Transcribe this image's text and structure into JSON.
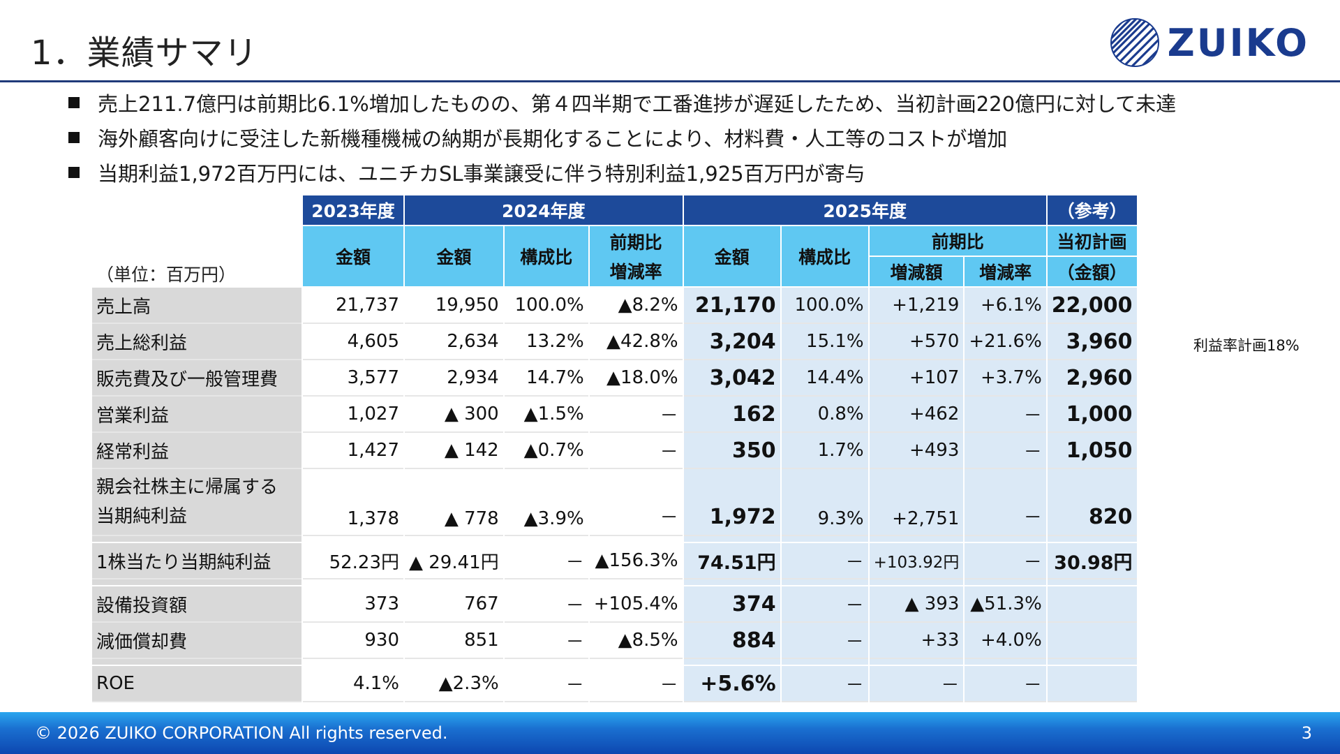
{
  "header": {
    "title": "1．業績サマリ",
    "logo_text": "ZUIKO",
    "logo_mark": "zuiko-sphere-logo"
  },
  "bullets": [
    "売上211.7億円は前期比6.1%増加したものの、第４四半期で工番進捗が遅延したため、当初計画220億円に対して未達",
    "海外顧客向けに受注した新機種機械の納期が長期化することにより、材料費・人工等のコストが増加",
    "当期利益1,972百万円には、ユニチカSL事業譲受に伴う特別利益1,925百万円が寄与"
  ],
  "table": {
    "unit": "（単位：百万円）",
    "years": {
      "y2023": "2023年度",
      "y2024": "2024年度",
      "y2025": "2025年度",
      "ref": "（参考）"
    },
    "cols": {
      "amount": "金額",
      "ratio": "構成比",
      "yoy_rate_l1": "前期比",
      "yoy_rate_l2": "増減率",
      "yoy": "前期比",
      "change_amount": "増減額",
      "change_rate": "増減率",
      "plan_l1": "当初計画",
      "plan_l2": "（金額）"
    },
    "rows": [
      {
        "label": "売上高",
        "c1": "21,737",
        "c2": "19,950",
        "c3": "100.0%",
        "c4": "▲8.2%",
        "c5": "21,170",
        "c6": "100.0%",
        "c7": "+1,219",
        "c8": "+6.1%",
        "c9": "22,000"
      },
      {
        "label": "売上総利益",
        "c1": "4,605",
        "c2": "2,634",
        "c3": "13.2%",
        "c4": "▲42.8%",
        "c5": "3,204",
        "c6": "15.1%",
        "c7": "+570",
        "c8": "+21.6%",
        "c9": "3,960"
      },
      {
        "label": "販売費及び一般管理費",
        "c1": "3,577",
        "c2": "2,934",
        "c3": "14.7%",
        "c4": "▲18.0%",
        "c5": "3,042",
        "c6": "14.4%",
        "c7": "+107",
        "c8": "+3.7%",
        "c9": "2,960"
      },
      {
        "label": "営業利益",
        "c1": "1,027",
        "c2": "▲ 300",
        "c3": "▲1.5%",
        "c4": "－",
        "c5": "162",
        "c6": "0.8%",
        "c7": "+462",
        "c8": "－",
        "c9": "1,000"
      },
      {
        "label": "経常利益",
        "c1": "1,427",
        "c2": "▲ 142",
        "c3": "▲0.7%",
        "c4": "－",
        "c5": "350",
        "c6": "1.7%",
        "c7": "+493",
        "c8": "－",
        "c9": "1,050"
      },
      {
        "label_l1": "親会社株主に帰属する",
        "label_l2": "当期純利益",
        "c1": "1,378",
        "c2": "▲ 778",
        "c3": "▲3.9%",
        "c4": "－",
        "c5": "1,972",
        "c6": "9.3%",
        "c7": "+2,751",
        "c8": "－",
        "c9": "820"
      },
      {
        "label": "1株当たり当期純利益",
        "c1": "52.23円",
        "c2": "▲ 29.41円",
        "c3": "－",
        "c4": "▲156.3%",
        "c5": "74.51円",
        "c6": "－",
        "c7": "+103.92円",
        "c8": "－",
        "c9": "30.98円"
      },
      {
        "label": "設備投資額",
        "c1": "373",
        "c2": "767",
        "c3": "－",
        "c4": "+105.4%",
        "c5": "374",
        "c6": "－",
        "c7": "▲ 393",
        "c8": "▲51.3%",
        "c9": ""
      },
      {
        "label": "減価償却費",
        "c1": "930",
        "c2": "851",
        "c3": "－",
        "c4": "▲8.5%",
        "c5": "884",
        "c6": "－",
        "c7": "+33",
        "c8": "+4.0%",
        "c9": ""
      },
      {
        "label": "ROE",
        "c1": "4.1%",
        "c2": "▲2.3%",
        "c3": "－",
        "c4": "－",
        "c5": "+5.6%",
        "c6": "－",
        "c7": "－",
        "c8": "－",
        "c9": ""
      }
    ],
    "note": "利益率計画18%"
  },
  "footer": {
    "copyright": "© 2026 ZUIKO CORPORATION All rights reserved.",
    "page": "3"
  },
  "colors": {
    "year_header": "#1d4a9a",
    "sub_header": "#5fc8f2",
    "highlight": "#dbe9f6",
    "label_bg": "#d9d9d9",
    "title_rule": "#1f3a7a"
  }
}
